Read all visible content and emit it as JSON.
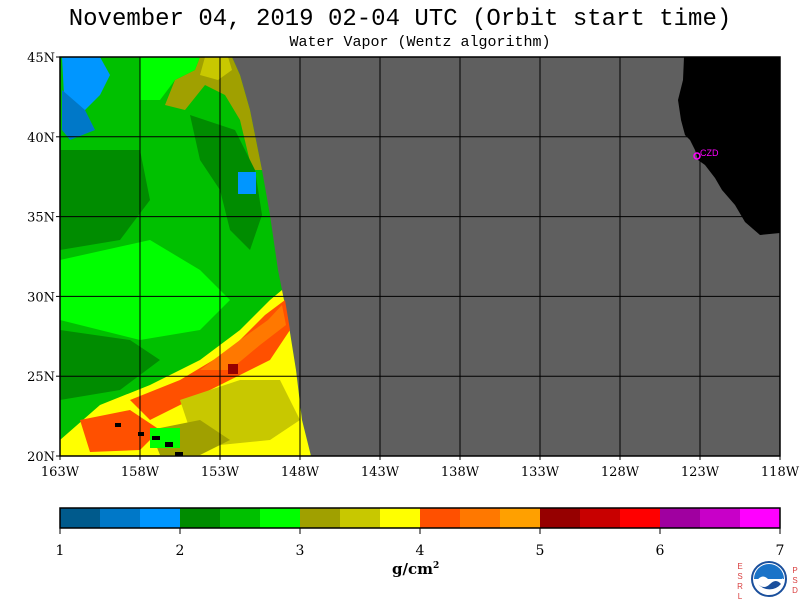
{
  "header": {
    "title": "November 04, 2019  02-04 UTC  (Orbit start time)",
    "subtitle": "Water Vapor (Wentz algorithm)"
  },
  "map": {
    "lat_labels": [
      "45N",
      "40N",
      "35N",
      "30N",
      "25N",
      "20N"
    ],
    "lon_labels": [
      "163W",
      "158W",
      "153W",
      "148W",
      "143W",
      "138W",
      "133W",
      "128W",
      "123W",
      "118W"
    ],
    "lat_range": [
      20,
      45
    ],
    "lon_range": [
      -163,
      -118
    ],
    "no_data_color": "#5f5f5f",
    "land_color": "#000000",
    "station_label": "CZD"
  },
  "colorbar": {
    "colors": [
      "#005a8c",
      "#0078c8",
      "#0096ff",
      "#008c00",
      "#00c000",
      "#00ff00",
      "#a0a000",
      "#c8c800",
      "#ffff00",
      "#ff5000",
      "#ff7800",
      "#ffa000",
      "#960000",
      "#c80000",
      "#ff0000",
      "#a000a0",
      "#c800c8",
      "#ff00ff"
    ],
    "tick_labels": [
      "1",
      "2",
      "3",
      "4",
      "5",
      "6",
      "7"
    ],
    "units": "g/cm",
    "units_exp": "2"
  },
  "logo": {
    "left_text": "ESRL",
    "right_text": "PSD",
    "name": "noaa-logo"
  }
}
